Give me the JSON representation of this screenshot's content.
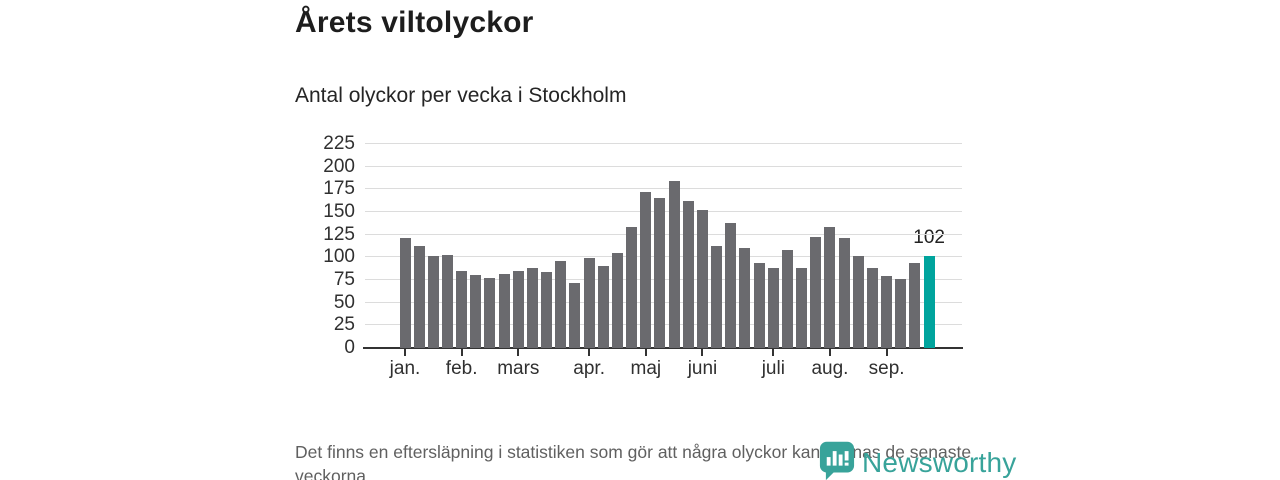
{
  "header": {
    "title": "Årets viltolyckor",
    "subtitle": "Antal olyckor per vecka i Stockholm"
  },
  "chart_data": {
    "type": "bar",
    "title": "Årets viltolyckor",
    "subtitle": "Antal olyckor per vecka i Stockholm",
    "ylabel": "Antal olyckor per vecka",
    "xlabel": "",
    "grid": true,
    "legend": false,
    "ylim": [
      0,
      235
    ],
    "y_ticks": [
      0,
      25,
      50,
      75,
      100,
      125,
      150,
      175,
      200,
      225
    ],
    "x_unit": "vecka",
    "values": [
      121,
      113,
      101,
      103,
      85,
      81,
      77,
      82,
      85,
      88,
      84,
      96,
      72,
      99,
      91,
      105,
      133,
      172,
      166,
      184,
      162,
      152,
      113,
      138,
      110,
      94,
      88,
      108,
      88,
      122,
      133,
      121,
      102,
      88,
      79,
      76,
      94,
      102
    ],
    "months": [
      {
        "label": "jan.",
        "week": 0
      },
      {
        "label": "feb.",
        "week": 4
      },
      {
        "label": "mars",
        "week": 8
      },
      {
        "label": "apr.",
        "week": 13
      },
      {
        "label": "maj",
        "week": 17
      },
      {
        "label": "juni",
        "week": 21
      },
      {
        "label": "juli",
        "week": 26
      },
      {
        "label": "aug.",
        "week": 30
      },
      {
        "label": "sep.",
        "week": 34
      }
    ],
    "highlight": {
      "index": 37,
      "label": "102",
      "color": "#00a49d"
    },
    "bar_color": "#6a6a6e"
  },
  "footer": {
    "note": "Det finns en eftersläpning i statistiken som gör att några olyckor kan saknas de senaste veckorna.",
    "brand": "Newsworthy"
  },
  "colors": {
    "highlight": "#00a49d",
    "bar": "#6a6a6e",
    "brand_teal": "#38a39a",
    "gridline": "#dcdcdc",
    "axis": "#333333"
  }
}
